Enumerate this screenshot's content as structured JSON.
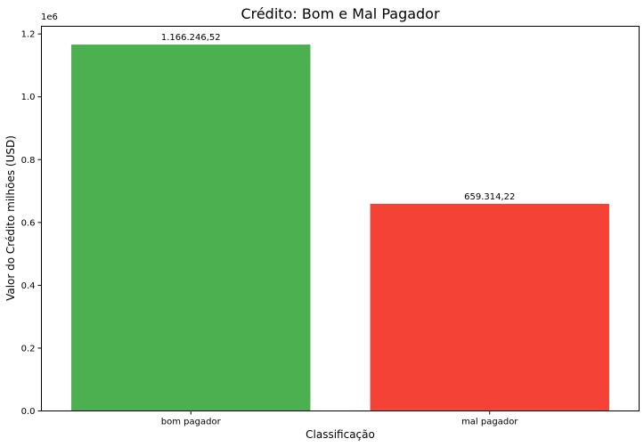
{
  "chart_data": {
    "type": "bar",
    "title": "Crédito: Bom e Mal Pagador",
    "xlabel": "Classificação",
    "ylabel": "Valor do Crédito milhões (USD)",
    "scale_label": "1e6",
    "categories": [
      "bom pagador",
      "mal pagador"
    ],
    "values": [
      1166246.52,
      659314.22
    ],
    "value_labels": [
      "1.166.246,52",
      "659.314,22"
    ],
    "colors": [
      "#4caf50",
      "#f44336"
    ],
    "ylim": [
      0,
      1224558.85
    ],
    "yticks": [
      0,
      200000,
      400000,
      600000,
      800000,
      1000000,
      1200000
    ],
    "ytick_labels": [
      "0.0",
      "0.2",
      "0.4",
      "0.6",
      "0.8",
      "1.0",
      "1.2"
    ],
    "grid": false,
    "legend": "none"
  }
}
